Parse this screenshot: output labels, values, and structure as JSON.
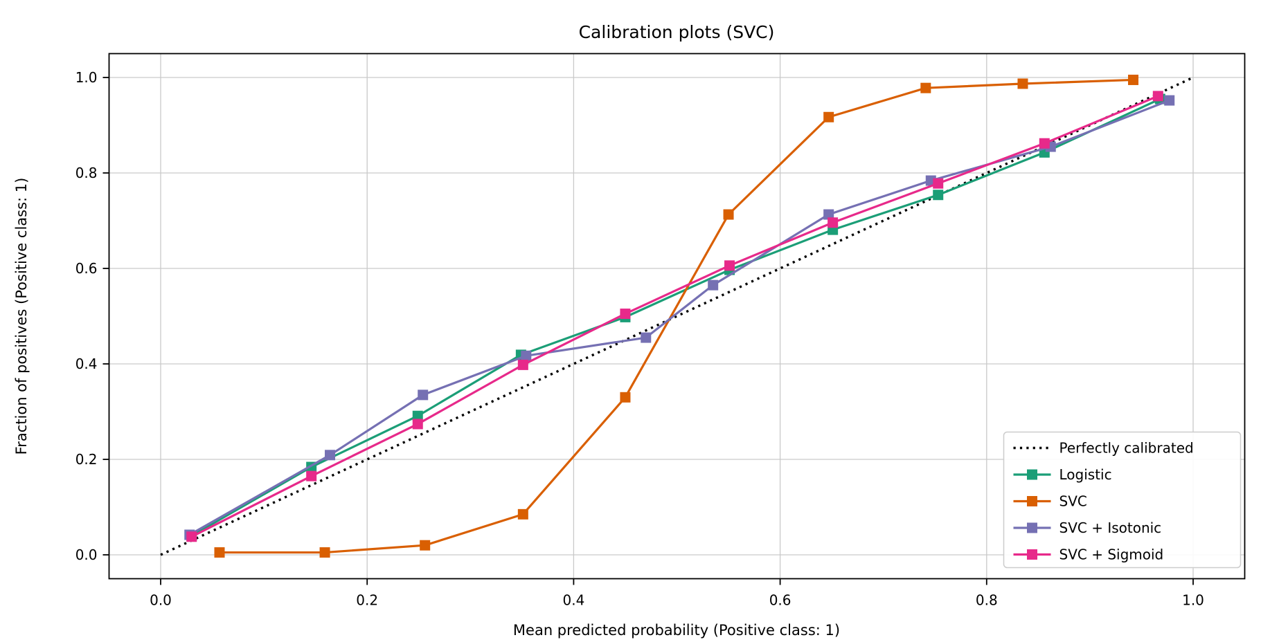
{
  "chart_data": {
    "type": "line",
    "title": "Calibration plots (SVC)",
    "xlabel": "Mean predicted probability (Positive class: 1)",
    "ylabel": "Fraction of positives (Positive class: 1)",
    "xlim": [
      -0.05,
      1.05
    ],
    "ylim": [
      -0.05,
      1.05
    ],
    "xticks": [
      0.0,
      0.2,
      0.4,
      0.6,
      0.8,
      1.0
    ],
    "xtick_labels": [
      "0.0",
      "0.2",
      "0.4",
      "0.6",
      "0.8",
      "1.0"
    ],
    "yticks": [
      0.0,
      0.2,
      0.4,
      0.6,
      0.8,
      1.0
    ],
    "ytick_labels": [
      "0.0",
      "0.2",
      "0.4",
      "0.6",
      "0.8",
      "1.0"
    ],
    "grid": true,
    "grid_color": "#c9c9c9",
    "spine_color": "#000000",
    "legend_position": "lower right",
    "reference_line": {
      "name": "Perfectly calibrated",
      "color": "#000000",
      "style": "dotted",
      "x": [
        0.0,
        1.0
      ],
      "y": [
        0.0,
        1.0
      ]
    },
    "series": [
      {
        "name": "Logistic",
        "color": "#1b9e77",
        "marker": "square",
        "x": [
          0.03,
          0.146,
          0.249,
          0.349,
          0.45,
          0.551,
          0.651,
          0.753,
          0.856,
          0.968
        ],
        "y": [
          0.04,
          0.184,
          0.291,
          0.419,
          0.498,
          0.597,
          0.681,
          0.754,
          0.843,
          0.955
        ]
      },
      {
        "name": "SVC",
        "color": "#d95f02",
        "marker": "square",
        "x": [
          0.057,
          0.159,
          0.256,
          0.351,
          0.45,
          0.55,
          0.647,
          0.741,
          0.835,
          0.942
        ],
        "y": [
          0.005,
          0.005,
          0.02,
          0.085,
          0.33,
          0.713,
          0.917,
          0.978,
          0.987,
          0.995
        ]
      },
      {
        "name": "SVC + Isotonic",
        "color": "#7570b3",
        "marker": "square",
        "x": [
          0.028,
          0.164,
          0.254,
          0.354,
          0.47,
          0.535,
          0.647,
          0.746,
          0.862,
          0.977
        ],
        "y": [
          0.042,
          0.209,
          0.335,
          0.417,
          0.455,
          0.565,
          0.713,
          0.784,
          0.855,
          0.952
        ]
      },
      {
        "name": "SVC + Sigmoid",
        "color": "#e7298a",
        "marker": "square",
        "x": [
          0.03,
          0.146,
          0.249,
          0.351,
          0.45,
          0.551,
          0.651,
          0.753,
          0.856,
          0.966
        ],
        "y": [
          0.038,
          0.165,
          0.274,
          0.398,
          0.505,
          0.606,
          0.696,
          0.778,
          0.862,
          0.961
        ]
      }
    ],
    "legend_entries": [
      "Perfectly calibrated",
      "Logistic",
      "SVC",
      "SVC + Isotonic",
      "SVC + Sigmoid"
    ]
  }
}
